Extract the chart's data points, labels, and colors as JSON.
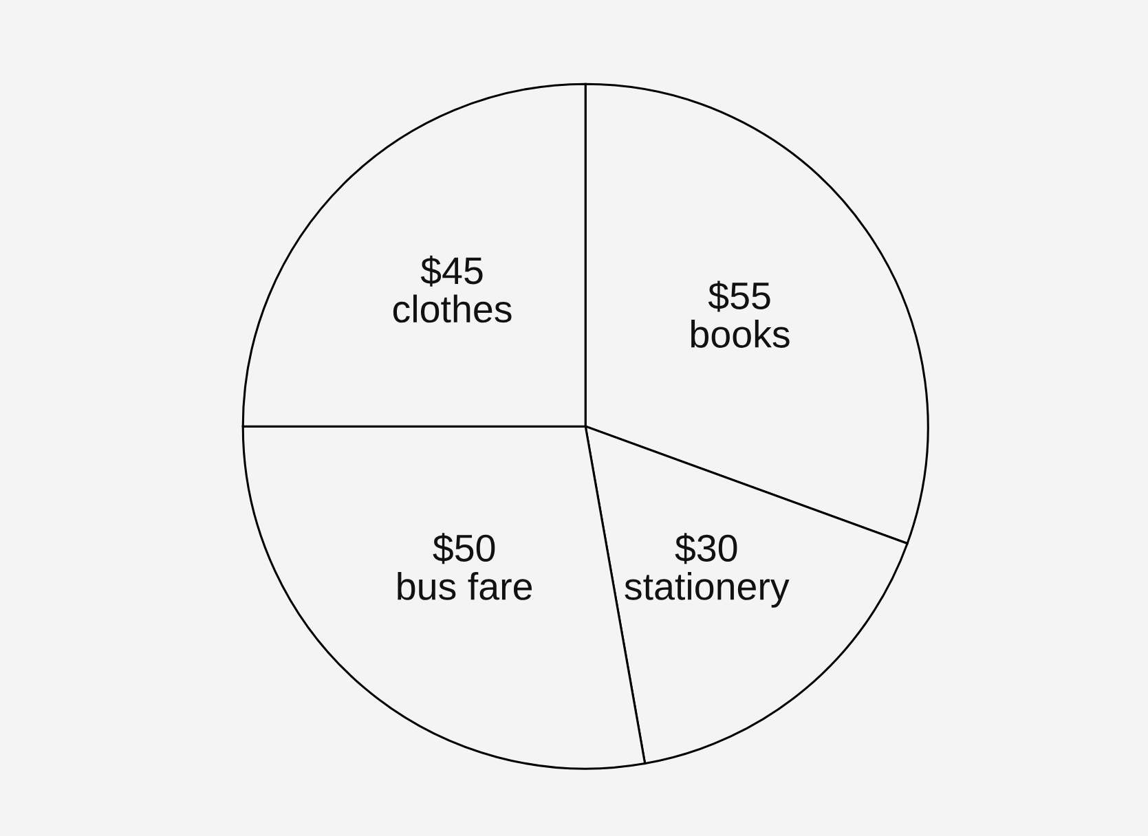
{
  "chart_data": {
    "type": "pie",
    "categories": [
      "books",
      "stationery",
      "bus fare",
      "clothes"
    ],
    "values": [
      55,
      30,
      50,
      45
    ],
    "value_labels": [
      "$55",
      "$30",
      "$50",
      "$45"
    ],
    "colors": [
      "#f4f4f4",
      "#f4f4f4",
      "#f4f4f4",
      "#f4f4f4"
    ],
    "legend": false
  }
}
